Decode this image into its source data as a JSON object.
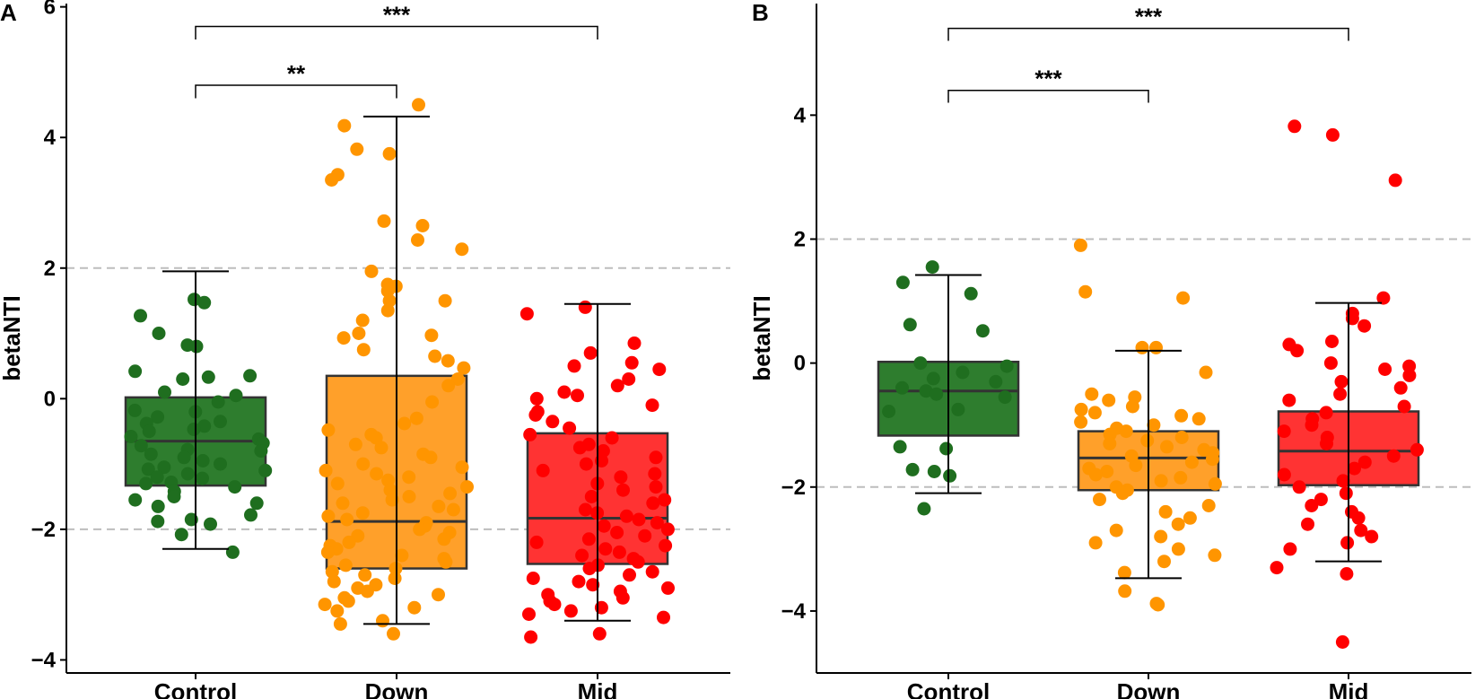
{
  "colors": {
    "Control": "#1f6e1f",
    "Down": "#ff9500",
    "Mid": "#ff0000",
    "boxFill": {
      "Control": "#2e7d2e",
      "Down": "#ffa02a",
      "Mid": "#ff3333"
    },
    "reference": "#bdbdbd"
  },
  "chart_data": [
    {
      "panel": "A",
      "type": "box",
      "ylabel": "betaNTI",
      "xlabel": "",
      "categories": [
        "Control",
        "Down",
        "Mid"
      ],
      "ylim": [
        -4.2,
        6.05
      ],
      "yticks": [
        -4,
        -2,
        0,
        2,
        4,
        6
      ],
      "reference_lines": [
        2,
        -2
      ],
      "boxes": [
        {
          "group": "Control",
          "q1": -1.33,
          "median": -0.65,
          "q3": 0.02,
          "whisker_low": -2.3,
          "whisker_high": 1.95
        },
        {
          "group": "Down",
          "q1": -2.6,
          "median": -1.88,
          "q3": 0.35,
          "whisker_low": -3.45,
          "whisker_high": 4.32
        },
        {
          "group": "Mid",
          "q1": -2.53,
          "median": -1.83,
          "q3": -0.53,
          "whisker_low": -3.4,
          "whisker_high": 1.45
        }
      ],
      "points": {
        "Control": [
          1.52,
          1.47,
          1.27,
          1.0,
          0.82,
          0.8,
          0.42,
          0.35,
          0.33,
          0.3,
          0.1,
          0.05,
          -0.05,
          -0.18,
          -0.2,
          -0.28,
          -0.35,
          -0.38,
          -0.42,
          -0.47,
          -0.5,
          -0.58,
          -0.62,
          -0.68,
          -0.72,
          -0.78,
          -0.8,
          -0.85,
          -0.9,
          -0.95,
          -1.0,
          -1.05,
          -1.08,
          -1.1,
          -1.15,
          -1.2,
          -1.22,
          -1.28,
          -1.3,
          -1.35,
          -1.42,
          -1.5,
          -1.55,
          -1.6,
          -1.65,
          -1.78,
          -1.85,
          -1.88,
          -1.92,
          -2.08,
          -2.35
        ],
        "Down": [
          4.5,
          4.18,
          3.82,
          3.75,
          3.43,
          3.35,
          2.72,
          2.65,
          2.43,
          2.29,
          1.95,
          1.75,
          1.72,
          1.65,
          1.5,
          1.5,
          1.35,
          1.2,
          1.0,
          0.97,
          0.93,
          0.75,
          0.65,
          0.58,
          0.47,
          0.3,
          0.2,
          -0.05,
          -0.3,
          -0.38,
          -0.48,
          -0.55,
          -0.6,
          -0.7,
          -0.75,
          -0.85,
          -0.9,
          -1.0,
          -1.05,
          -1.1,
          -1.15,
          -1.2,
          -1.25,
          -1.3,
          -1.35,
          -1.4,
          -1.45,
          -1.5,
          -1.55,
          -1.6,
          -1.65,
          -1.7,
          -1.75,
          -1.8,
          -1.85,
          -1.9,
          -1.95,
          -2.0,
          -2.05,
          -2.1,
          -2.15,
          -2.2,
          -2.25,
          -2.3,
          -2.35,
          -2.4,
          -2.45,
          -2.5,
          -2.55,
          -2.6,
          -2.65,
          -2.7,
          -2.75,
          -2.8,
          -2.85,
          -2.9,
          -2.95,
          -3.0,
          -3.05,
          -3.1,
          -3.15,
          -3.2,
          -3.25,
          -3.4,
          -3.45,
          -3.6
        ],
        "Mid": [
          1.4,
          1.3,
          0.85,
          0.7,
          0.55,
          0.5,
          0.45,
          0.3,
          0.2,
          0.1,
          0.05,
          0.0,
          -0.1,
          -0.2,
          -0.25,
          -0.35,
          -0.45,
          -0.55,
          -0.6,
          -0.7,
          -0.75,
          -0.8,
          -0.9,
          -0.95,
          -1.0,
          -1.1,
          -1.15,
          -1.2,
          -1.3,
          -1.35,
          -1.4,
          -1.5,
          -1.55,
          -1.6,
          -1.7,
          -1.75,
          -1.8,
          -1.85,
          -1.9,
          -1.95,
          -2.0,
          -2.05,
          -2.1,
          -2.15,
          -2.2,
          -2.25,
          -2.3,
          -2.35,
          -2.4,
          -2.45,
          -2.5,
          -2.55,
          -2.6,
          -2.65,
          -2.7,
          -2.75,
          -2.8,
          -2.85,
          -2.9,
          -2.95,
          -3.0,
          -3.05,
          -3.1,
          -3.15,
          -3.2,
          -3.25,
          -3.3,
          -3.35,
          -3.6,
          -3.65
        ]
      },
      "significance": [
        {
          "from": "Control",
          "to": "Down",
          "label": "**",
          "y": 4.8,
          "tick": 0.2
        },
        {
          "from": "Control",
          "to": "Mid",
          "label": "***",
          "y": 5.7,
          "tick": 0.2
        }
      ]
    },
    {
      "panel": "B",
      "type": "box",
      "ylabel": "betaNTI",
      "xlabel": "",
      "categories": [
        "Control",
        "Down",
        "Mid"
      ],
      "ylim": [
        -5.0,
        5.8
      ],
      "yticks": [
        -4,
        -2,
        0,
        2,
        4
      ],
      "reference_lines": [
        2,
        -2
      ],
      "boxes": [
        {
          "group": "Control",
          "q1": -1.17,
          "median": -0.45,
          "q3": 0.02,
          "whisker_low": -2.1,
          "whisker_high": 1.42
        },
        {
          "group": "Down",
          "q1": -2.05,
          "median": -1.53,
          "q3": -1.1,
          "whisker_low": -3.47,
          "whisker_high": 0.2
        },
        {
          "group": "Mid",
          "q1": -1.97,
          "median": -1.42,
          "q3": -0.78,
          "whisker_low": -3.2,
          "whisker_high": 0.97
        }
      ],
      "points": {
        "Control": [
          1.55,
          1.3,
          1.12,
          0.62,
          0.52,
          0.0,
          -0.05,
          -0.15,
          -0.25,
          -0.3,
          -0.4,
          -0.45,
          -0.5,
          -0.55,
          -0.75,
          -0.78,
          -1.35,
          -1.38,
          -1.72,
          -1.75,
          -1.82,
          -2.35
        ],
        "Down": [
          1.9,
          1.15,
          1.05,
          0.25,
          0.25,
          -0.15,
          -0.5,
          -0.55,
          -0.6,
          -0.7,
          -0.75,
          -0.8,
          -0.85,
          -0.9,
          -0.95,
          -1.0,
          -1.05,
          -1.1,
          -1.15,
          -1.2,
          -1.25,
          -1.3,
          -1.35,
          -1.4,
          -1.45,
          -1.5,
          -1.55,
          -1.6,
          -1.65,
          -1.7,
          -1.75,
          -1.8,
          -1.85,
          -1.9,
          -1.95,
          -2.0,
          -2.05,
          -2.1,
          -2.2,
          -2.3,
          -2.4,
          -2.5,
          -2.6,
          -2.7,
          -2.8,
          -2.9,
          -3.0,
          -3.1,
          -3.2,
          -3.38,
          -3.68,
          -3.88,
          -3.9
        ],
        "Mid": [
          3.82,
          3.68,
          2.95,
          1.05,
          0.8,
          0.72,
          0.6,
          0.35,
          0.3,
          0.2,
          0.0,
          -0.05,
          -0.1,
          -0.2,
          -0.3,
          -0.4,
          -0.5,
          -0.6,
          -0.7,
          -0.8,
          -0.9,
          -1.0,
          -1.1,
          -1.2,
          -1.3,
          -1.4,
          -1.5,
          -1.6,
          -1.7,
          -1.8,
          -1.9,
          -2.0,
          -2.1,
          -2.2,
          -2.3,
          -2.4,
          -2.5,
          -2.6,
          -2.7,
          -2.8,
          -2.9,
          -3.0,
          -3.3,
          -3.4,
          -4.5
        ]
      },
      "significance": [
        {
          "from": "Control",
          "to": "Down",
          "label": "***",
          "y": 4.4,
          "tick": 0.2
        },
        {
          "from": "Control",
          "to": "Mid",
          "label": "***",
          "y": 5.4,
          "tick": 0.2
        }
      ]
    }
  ]
}
